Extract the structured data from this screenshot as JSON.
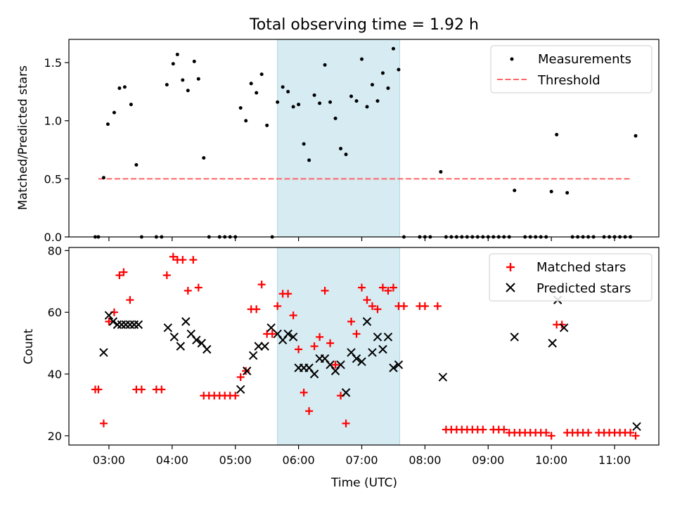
{
  "figure": {
    "title": "Total observing time = 1.92 h",
    "background": "#ffffff"
  },
  "chart_data": [
    {
      "type": "scatter",
      "panel": "top",
      "ylabel": "Matched/Predicted stars",
      "xlabel": "",
      "xlim": [
        "02:22",
        "11:42"
      ],
      "ylim": [
        0,
        1.7
      ],
      "y_ticks": [
        0.0,
        0.5,
        1.0,
        1.5
      ],
      "y_tick_labels": [
        "0.0",
        "0.5",
        "1.0",
        "1.5"
      ],
      "x_ticks": [
        "03:00",
        "04:00",
        "05:00",
        "06:00",
        "07:00",
        "08:00",
        "09:00",
        "10:00",
        "11:00"
      ],
      "x_tick_labels_shown": false,
      "grid": false,
      "legend_position": "upper right",
      "shaded_span": {
        "start": "05:40",
        "end": "07:36",
        "color": "#add8e6"
      },
      "series": [
        {
          "name": "Measurements",
          "marker": "dot",
          "color": "#000000",
          "points": [
            [
              "02:47",
              0
            ],
            [
              "02:50",
              0
            ],
            [
              "02:55",
              0.51
            ],
            [
              "02:59",
              0.97
            ],
            [
              "03:05",
              1.07
            ],
            [
              "03:10",
              1.28
            ],
            [
              "03:15",
              1.29
            ],
            [
              "03:21",
              1.14
            ],
            [
              "03:26",
              0.62
            ],
            [
              "03:31",
              0
            ],
            [
              "03:45",
              0
            ],
            [
              "03:50",
              0
            ],
            [
              "03:55",
              1.31
            ],
            [
              "04:01",
              1.49
            ],
            [
              "04:05",
              1.57
            ],
            [
              "04:10",
              1.35
            ],
            [
              "04:15",
              1.26
            ],
            [
              "04:21",
              1.51
            ],
            [
              "04:25",
              1.36
            ],
            [
              "04:30",
              0.68
            ],
            [
              "04:35",
              0
            ],
            [
              "04:45",
              0
            ],
            [
              "04:50",
              0
            ],
            [
              "04:55",
              0
            ],
            [
              "05:00",
              0
            ],
            [
              "05:05",
              1.11
            ],
            [
              "05:10",
              1.0
            ],
            [
              "05:15",
              1.32
            ],
            [
              "05:20",
              1.24
            ],
            [
              "05:25",
              1.4
            ],
            [
              "05:30",
              0.96
            ],
            [
              "05:35",
              0
            ],
            [
              "05:40",
              1.16
            ],
            [
              "05:45",
              1.29
            ],
            [
              "05:50",
              1.25
            ],
            [
              "05:55",
              1.12
            ],
            [
              "06:00",
              1.14
            ],
            [
              "06:05",
              0.8
            ],
            [
              "06:10",
              0.66
            ],
            [
              "06:15",
              1.22
            ],
            [
              "06:20",
              1.15
            ],
            [
              "06:25",
              1.48
            ],
            [
              "06:30",
              1.16
            ],
            [
              "06:35",
              1.02
            ],
            [
              "06:40",
              0.76
            ],
            [
              "06:45",
              0.71
            ],
            [
              "06:50",
              1.21
            ],
            [
              "06:55",
              1.17
            ],
            [
              "07:00",
              1.53
            ],
            [
              "07:05",
              1.12
            ],
            [
              "07:10",
              1.31
            ],
            [
              "07:15",
              1.17
            ],
            [
              "07:20",
              1.41
            ],
            [
              "07:25",
              1.28
            ],
            [
              "07:30",
              1.62
            ],
            [
              "07:35",
              1.44
            ],
            [
              "07:40",
              0
            ],
            [
              "07:55",
              0
            ],
            [
              "08:00",
              0
            ],
            [
              "08:05",
              0
            ],
            [
              "08:15",
              0.56
            ],
            [
              "08:20",
              0
            ],
            [
              "08:25",
              0
            ],
            [
              "08:30",
              0
            ],
            [
              "08:35",
              0
            ],
            [
              "08:40",
              0
            ],
            [
              "08:45",
              0
            ],
            [
              "08:50",
              0
            ],
            [
              "08:55",
              0
            ],
            [
              "09:00",
              0
            ],
            [
              "09:05",
              0
            ],
            [
              "09:10",
              0
            ],
            [
              "09:15",
              0
            ],
            [
              "09:20",
              0
            ],
            [
              "09:25",
              0.4
            ],
            [
              "09:35",
              0
            ],
            [
              "09:40",
              0
            ],
            [
              "09:45",
              0
            ],
            [
              "09:50",
              0
            ],
            [
              "09:55",
              0
            ],
            [
              "10:00",
              0.39
            ],
            [
              "10:05",
              0.88
            ],
            [
              "10:15",
              0.38
            ],
            [
              "10:20",
              0
            ],
            [
              "10:25",
              0
            ],
            [
              "10:30",
              0
            ],
            [
              "10:35",
              0
            ],
            [
              "10:40",
              0
            ],
            [
              "10:50",
              0
            ],
            [
              "10:55",
              0
            ],
            [
              "11:00",
              0
            ],
            [
              "11:05",
              0
            ],
            [
              "11:10",
              0
            ],
            [
              "11:15",
              0
            ],
            [
              "11:20",
              0.87
            ]
          ]
        },
        {
          "name": "Threshold",
          "marker": "dashed-line",
          "color": "#ff6666",
          "x": [
            "02:50",
            "11:15"
          ],
          "y": [
            0.5,
            0.5
          ]
        }
      ]
    },
    {
      "type": "scatter",
      "panel": "bottom",
      "ylabel": "Count",
      "xlabel": "Time (UTC)",
      "xlim": [
        "02:22",
        "11:42"
      ],
      "ylim": [
        17,
        81
      ],
      "y_ticks": [
        20,
        40,
        60,
        80
      ],
      "y_tick_labels": [
        "20",
        "40",
        "60",
        "80"
      ],
      "x_ticks": [
        "03:00",
        "04:00",
        "05:00",
        "06:00",
        "07:00",
        "08:00",
        "09:00",
        "10:00",
        "11:00"
      ],
      "x_tick_labels": [
        "03:00",
        "04:00",
        "05:00",
        "06:00",
        "07:00",
        "08:00",
        "09:00",
        "10:00",
        "11:00"
      ],
      "grid": false,
      "legend_position": "upper right",
      "shaded_span": {
        "start": "05:40",
        "end": "07:36",
        "color": "#add8e6"
      },
      "series": [
        {
          "name": "Matched stars",
          "marker": "plus",
          "color": "#ff0000",
          "points": [
            [
              "02:47",
              35
            ],
            [
              "02:50",
              35
            ],
            [
              "02:55",
              24
            ],
            [
              "03:00",
              57
            ],
            [
              "03:05",
              60
            ],
            [
              "03:10",
              72
            ],
            [
              "03:14",
              73
            ],
            [
              "03:20",
              64
            ],
            [
              "03:26",
              35
            ],
            [
              "03:31",
              35
            ],
            [
              "03:45",
              35
            ],
            [
              "03:50",
              35
            ],
            [
              "03:55",
              72
            ],
            [
              "04:01",
              78
            ],
            [
              "04:05",
              77
            ],
            [
              "04:10",
              77
            ],
            [
              "04:15",
              67
            ],
            [
              "04:20",
              77
            ],
            [
              "04:25",
              68
            ],
            [
              "04:30",
              33
            ],
            [
              "04:35",
              33
            ],
            [
              "04:40",
              33
            ],
            [
              "04:45",
              33
            ],
            [
              "04:50",
              33
            ],
            [
              "04:55",
              33
            ],
            [
              "05:00",
              33
            ],
            [
              "05:05",
              39
            ],
            [
              "05:10",
              41
            ],
            [
              "05:15",
              61
            ],
            [
              "05:20",
              61
            ],
            [
              "05:25",
              69
            ],
            [
              "05:30",
              53
            ],
            [
              "05:35",
              53
            ],
            [
              "05:40",
              62
            ],
            [
              "05:45",
              66
            ],
            [
              "05:50",
              66
            ],
            [
              "05:55",
              59
            ],
            [
              "06:00",
              48
            ],
            [
              "06:05",
              34
            ],
            [
              "06:10",
              28
            ],
            [
              "06:15",
              49
            ],
            [
              "06:20",
              52
            ],
            [
              "06:25",
              67
            ],
            [
              "06:30",
              50
            ],
            [
              "06:35",
              43
            ],
            [
              "06:40",
              33
            ],
            [
              "06:45",
              24
            ],
            [
              "06:50",
              57
            ],
            [
              "06:55",
              53
            ],
            [
              "07:00",
              68
            ],
            [
              "07:05",
              64
            ],
            [
              "07:10",
              62
            ],
            [
              "07:15",
              61
            ],
            [
              "07:20",
              68
            ],
            [
              "07:25",
              67
            ],
            [
              "07:30",
              68
            ],
            [
              "07:35",
              62
            ],
            [
              "07:40",
              62
            ],
            [
              "07:55",
              62
            ],
            [
              "08:00",
              62
            ],
            [
              "08:12",
              62
            ],
            [
              "08:20",
              22
            ],
            [
              "08:25",
              22
            ],
            [
              "08:30",
              22
            ],
            [
              "08:35",
              22
            ],
            [
              "08:40",
              22
            ],
            [
              "08:45",
              22
            ],
            [
              "08:50",
              22
            ],
            [
              "08:55",
              22
            ],
            [
              "09:05",
              22
            ],
            [
              "09:10",
              22
            ],
            [
              "09:15",
              22
            ],
            [
              "09:20",
              21
            ],
            [
              "09:25",
              21
            ],
            [
              "09:30",
              21
            ],
            [
              "09:35",
              21
            ],
            [
              "09:40",
              21
            ],
            [
              "09:45",
              21
            ],
            [
              "09:50",
              21
            ],
            [
              "09:55",
              21
            ],
            [
              "10:00",
              20
            ],
            [
              "10:05",
              56
            ],
            [
              "10:10",
              56
            ],
            [
              "10:15",
              21
            ],
            [
              "10:20",
              21
            ],
            [
              "10:25",
              21
            ],
            [
              "10:30",
              21
            ],
            [
              "10:35",
              21
            ],
            [
              "10:45",
              21
            ],
            [
              "10:50",
              21
            ],
            [
              "10:55",
              21
            ],
            [
              "11:00",
              21
            ],
            [
              "11:05",
              21
            ],
            [
              "11:10",
              21
            ],
            [
              "11:15",
              21
            ],
            [
              "11:20",
              20
            ]
          ]
        },
        {
          "name": "Predicted stars",
          "marker": "x",
          "color": "#000000",
          "points": [
            [
              "02:55",
              47
            ],
            [
              "03:00",
              59
            ],
            [
              "03:04",
              57
            ],
            [
              "03:08",
              56
            ],
            [
              "03:12",
              56
            ],
            [
              "03:16",
              56
            ],
            [
              "03:20",
              56
            ],
            [
              "03:24",
              56
            ],
            [
              "03:28",
              56
            ],
            [
              "03:56",
              55
            ],
            [
              "04:02",
              52
            ],
            [
              "04:08",
              49
            ],
            [
              "04:13",
              57
            ],
            [
              "04:18",
              53
            ],
            [
              "04:23",
              51
            ],
            [
              "04:28",
              50
            ],
            [
              "04:33",
              48
            ],
            [
              "05:05",
              35
            ],
            [
              "05:11",
              41
            ],
            [
              "05:17",
              46
            ],
            [
              "05:22",
              49
            ],
            [
              "05:28",
              49
            ],
            [
              "05:34",
              55
            ],
            [
              "05:40",
              53
            ],
            [
              "05:45",
              51
            ],
            [
              "05:50",
              53
            ],
            [
              "05:55",
              52
            ],
            [
              "06:00",
              42
            ],
            [
              "06:05",
              42
            ],
            [
              "06:10",
              42
            ],
            [
              "06:15",
              40
            ],
            [
              "06:20",
              45
            ],
            [
              "06:25",
              45
            ],
            [
              "06:30",
              43
            ],
            [
              "06:35",
              41
            ],
            [
              "06:40",
              43
            ],
            [
              "06:45",
              34
            ],
            [
              "06:50",
              47
            ],
            [
              "06:55",
              45
            ],
            [
              "07:00",
              44
            ],
            [
              "07:05",
              57
            ],
            [
              "07:10",
              47
            ],
            [
              "07:15",
              52
            ],
            [
              "07:20",
              48
            ],
            [
              "07:25",
              52
            ],
            [
              "07:30",
              42
            ],
            [
              "07:35",
              43
            ],
            [
              "08:17",
              39
            ],
            [
              "09:25",
              52
            ],
            [
              "10:01",
              50
            ],
            [
              "10:06",
              64
            ],
            [
              "10:12",
              55
            ],
            [
              "11:21",
              23
            ]
          ]
        }
      ]
    }
  ]
}
